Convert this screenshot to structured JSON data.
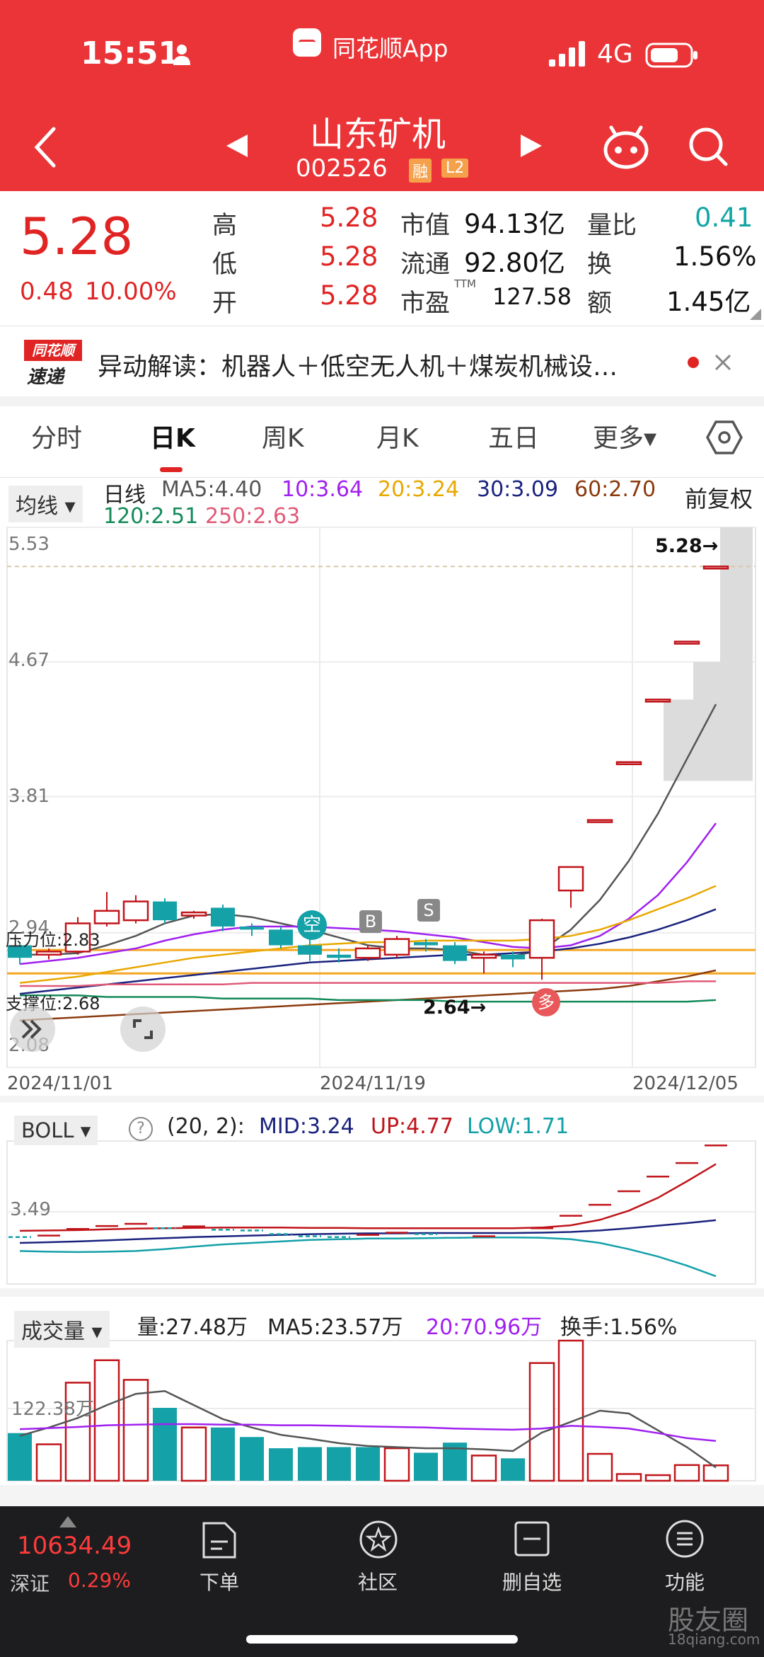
{
  "status_bar": {
    "time": "15:51",
    "app_label": "同花顺App",
    "network": "4G"
  },
  "header": {
    "title": "山东矿机",
    "code": "002526",
    "badge_margin": "融",
    "badge_level": "L2"
  },
  "quote": {
    "price": "5.28",
    "change": "0.48",
    "change_pct": "10.00%",
    "high_label": "高",
    "high": "5.28",
    "low_label": "低",
    "low": "5.28",
    "open_label": "开",
    "open": "5.28",
    "mktcap_label": "市值",
    "mktcap": "94.13亿",
    "float_label": "流通",
    "float": "92.80亿",
    "pe_label": "市盈",
    "pe_sup": "TTM",
    "pe": "127.58",
    "volratio_label": "量比",
    "volratio": "0.41",
    "turnover_label": "换",
    "turnover": "1.56%",
    "amount_label": "额",
    "amount": "1.45亿"
  },
  "news": {
    "logo_top": "同花顺",
    "logo_bottom": "速递",
    "text": "异动解读：机器人＋低空无人机＋煤炭机械设…"
  },
  "tabs": [
    "分时",
    "日K",
    "周K",
    "月K",
    "五日",
    "更多▾"
  ],
  "active_tab": "日K",
  "ma_legend": {
    "selector": "均线 ▾",
    "period": "日线",
    "fuquan": "前复权",
    "items": [
      {
        "label": "MA5:4.40",
        "color": "#555555"
      },
      {
        "label": "10:3.64",
        "color": "#a020f0"
      },
      {
        "label": "20:3.24",
        "color": "#e8a800"
      },
      {
        "label": "30:3.09",
        "color": "#1a237e"
      },
      {
        "label": "60:2.70",
        "color": "#8b3a0e"
      },
      {
        "label": "120:2.51",
        "color": "#138a5a"
      },
      {
        "label": "250:2.63",
        "color": "#e05a78"
      }
    ]
  },
  "kline": {
    "y_labels": [
      "5.53",
      "4.67",
      "3.81",
      "2.94",
      "2.08"
    ],
    "pressure_label": "压力位:2.83",
    "support_label": "支撑位:2.68",
    "high_marker": "5.28→",
    "low_marker": "2.64→",
    "dates": [
      "2024/11/01",
      "2024/11/19",
      "2024/12/05"
    ],
    "signal_kong": "空",
    "signal_b": "B",
    "signal_s": "S",
    "signal_duo": "多"
  },
  "boll": {
    "selector": "BOLL ▾",
    "params": "(20, 2):",
    "mid": "MID:3.24",
    "up": "UP:4.77",
    "low": "LOW:1.71",
    "y_label": "3.49"
  },
  "volume": {
    "selector": "成交量 ▾",
    "vol": "量:27.48万",
    "ma5": "MA5:23.57万",
    "ma20": "20:70.96万",
    "turnover": "换手:1.56%",
    "y_label": "122.38万"
  },
  "bottom_bar": {
    "index_value": "10634.49",
    "index_name": "深证",
    "index_change": "0.29%",
    "items": [
      "下单",
      "社区",
      "删自选",
      "功能"
    ]
  },
  "watermark": {
    "title": "股友圈",
    "url": "18qiang.com"
  },
  "chart_data": {
    "type": "candlestick",
    "dates": [
      "2024/11/01",
      "2024/11/19",
      "2024/12/05"
    ],
    "ylim": [
      2.08,
      5.53
    ],
    "candles": [
      {
        "o": 2.86,
        "c": 2.78,
        "h": 2.88,
        "l": 2.74
      },
      {
        "o": 2.8,
        "c": 2.82,
        "h": 2.84,
        "l": 2.77
      },
      {
        "o": 2.82,
        "c": 3.0,
        "h": 3.04,
        "l": 2.8
      },
      {
        "o": 3.0,
        "c": 3.08,
        "h": 3.2,
        "l": 2.98
      },
      {
        "o": 3.02,
        "c": 3.14,
        "h": 3.18,
        "l": 3.0
      },
      {
        "o": 3.14,
        "c": 3.02,
        "h": 3.16,
        "l": 3.0
      },
      {
        "o": 3.05,
        "c": 3.07,
        "h": 3.08,
        "l": 3.03
      },
      {
        "o": 3.1,
        "c": 2.98,
        "h": 3.12,
        "l": 2.95
      },
      {
        "o": 2.98,
        "c": 2.96,
        "h": 3.0,
        "l": 2.92
      },
      {
        "o": 2.96,
        "c": 2.86,
        "h": 2.98,
        "l": 2.84
      },
      {
        "o": 2.86,
        "c": 2.8,
        "h": 2.9,
        "l": 2.76
      },
      {
        "o": 2.8,
        "c": 2.78,
        "h": 2.84,
        "l": 2.75
      },
      {
        "o": 2.78,
        "c": 2.84,
        "h": 2.86,
        "l": 2.76
      },
      {
        "o": 2.8,
        "c": 2.9,
        "h": 2.92,
        "l": 2.78
      },
      {
        "o": 2.88,
        "c": 2.86,
        "h": 2.9,
        "l": 2.82
      },
      {
        "o": 2.86,
        "c": 2.76,
        "h": 2.88,
        "l": 2.74
      },
      {
        "o": 2.78,
        "c": 2.8,
        "h": 2.82,
        "l": 2.68
      },
      {
        "o": 2.8,
        "c": 2.77,
        "h": 2.82,
        "l": 2.72
      },
      {
        "o": 2.78,
        "c": 3.02,
        "h": 3.03,
        "l": 2.64
      },
      {
        "o": 3.21,
        "c": 3.36,
        "h": 3.36,
        "l": 3.1
      },
      {
        "o": 3.66,
        "c": 3.66,
        "h": 3.66,
        "l": 3.66
      },
      {
        "o": 4.03,
        "c": 4.03,
        "h": 4.03,
        "l": 4.03
      },
      {
        "o": 4.43,
        "c": 4.43,
        "h": 4.43,
        "l": 4.43
      },
      {
        "o": 4.8,
        "c": 4.8,
        "h": 4.8,
        "l": 4.8
      },
      {
        "o": 5.28,
        "c": 5.28,
        "h": 5.28,
        "l": 5.28
      }
    ],
    "ma": {
      "MA5": [
        2.8,
        2.8,
        2.81,
        2.86,
        2.92,
        3.0,
        3.05,
        3.06,
        3.04,
        3.0,
        2.96,
        2.91,
        2.86,
        2.84,
        2.84,
        2.83,
        2.8,
        2.79,
        2.83,
        2.96,
        3.15,
        3.4,
        3.7,
        4.05,
        4.4
      ],
      "MA10": [
        2.74,
        2.76,
        2.78,
        2.81,
        2.84,
        2.89,
        2.93,
        2.96,
        2.98,
        2.98,
        2.98,
        2.97,
        2.96,
        2.95,
        2.93,
        2.91,
        2.88,
        2.85,
        2.84,
        2.86,
        2.92,
        3.03,
        3.18,
        3.39,
        3.64
      ],
      "MA20": [
        2.62,
        2.64,
        2.66,
        2.69,
        2.72,
        2.75,
        2.78,
        2.8,
        2.82,
        2.84,
        2.86,
        2.87,
        2.88,
        2.88,
        2.89,
        2.89,
        2.89,
        2.89,
        2.9,
        2.92,
        2.96,
        3.02,
        3.09,
        3.16,
        3.24
      ],
      "MA30": [
        2.55,
        2.57,
        2.59,
        2.61,
        2.63,
        2.65,
        2.67,
        2.69,
        2.71,
        2.73,
        2.75,
        2.76,
        2.77,
        2.78,
        2.79,
        2.8,
        2.8,
        2.81,
        2.82,
        2.84,
        2.87,
        2.91,
        2.96,
        3.02,
        3.09
      ],
      "MA60": [
        2.38,
        2.39,
        2.4,
        2.41,
        2.42,
        2.43,
        2.44,
        2.45,
        2.46,
        2.47,
        2.48,
        2.49,
        2.5,
        2.51,
        2.52,
        2.53,
        2.54,
        2.55,
        2.56,
        2.57,
        2.58,
        2.6,
        2.63,
        2.66,
        2.7
      ],
      "MA120": [
        2.54,
        2.54,
        2.54,
        2.53,
        2.53,
        2.53,
        2.53,
        2.52,
        2.52,
        2.52,
        2.52,
        2.51,
        2.51,
        2.51,
        2.51,
        2.5,
        2.5,
        2.5,
        2.5,
        2.5,
        2.5,
        2.5,
        2.5,
        2.5,
        2.51
      ],
      "MA250": [
        2.6,
        2.6,
        2.6,
        2.61,
        2.61,
        2.61,
        2.61,
        2.61,
        2.62,
        2.62,
        2.62,
        2.62,
        2.62,
        2.62,
        2.62,
        2.62,
        2.62,
        2.62,
        2.62,
        2.62,
        2.62,
        2.62,
        2.62,
        2.63,
        2.63
      ]
    },
    "pressure": 2.83,
    "support": 2.68,
    "boll": {
      "ylim": [
        1.5,
        5.4
      ],
      "up": [
        2.95,
        2.96,
        2.97,
        2.99,
        3.01,
        3.02,
        3.03,
        3.04,
        3.04,
        3.04,
        3.03,
        3.03,
        3.02,
        3.02,
        3.02,
        3.02,
        3.02,
        3.02,
        3.04,
        3.1,
        3.25,
        3.5,
        3.85,
        4.3,
        4.77
      ],
      "mid": [
        2.62,
        2.64,
        2.66,
        2.69,
        2.72,
        2.75,
        2.78,
        2.8,
        2.82,
        2.84,
        2.86,
        2.87,
        2.88,
        2.88,
        2.89,
        2.89,
        2.89,
        2.89,
        2.9,
        2.92,
        2.96,
        3.02,
        3.09,
        3.16,
        3.24
      ],
      "low": [
        2.4,
        2.38,
        2.37,
        2.38,
        2.4,
        2.45,
        2.52,
        2.58,
        2.62,
        2.66,
        2.7,
        2.72,
        2.74,
        2.74,
        2.75,
        2.76,
        2.77,
        2.77,
        2.76,
        2.72,
        2.62,
        2.45,
        2.25,
        2.0,
        1.71
      ]
    },
    "volume": {
      "ylim": [
        0,
        250
      ],
      "values": [
        85,
        65,
        175,
        215,
        180,
        130,
        95,
        95,
        78,
        58,
        60,
        60,
        60,
        58,
        50,
        68,
        45,
        40,
        210,
        250,
        48,
        12,
        10,
        28,
        27.48
      ],
      "up": [
        false,
        true,
        true,
        true,
        true,
        false,
        true,
        false,
        false,
        false,
        false,
        false,
        false,
        true,
        false,
        false,
        true,
        false,
        true,
        true,
        true,
        true,
        true,
        true,
        true
      ],
      "ma5": [
        80,
        95,
        112,
        135,
        155,
        160,
        135,
        110,
        95,
        82,
        75,
        67,
        62,
        60,
        58,
        58,
        56,
        53,
        86,
        105,
        125,
        120,
        90,
        60,
        23.57
      ],
      "ma20": [
        92,
        94,
        96,
        99,
        100,
        101,
        101,
        100,
        100,
        99,
        99,
        98,
        97,
        96,
        95,
        93,
        92,
        91,
        93,
        98,
        96,
        93,
        85,
        76,
        70.96
      ]
    }
  }
}
